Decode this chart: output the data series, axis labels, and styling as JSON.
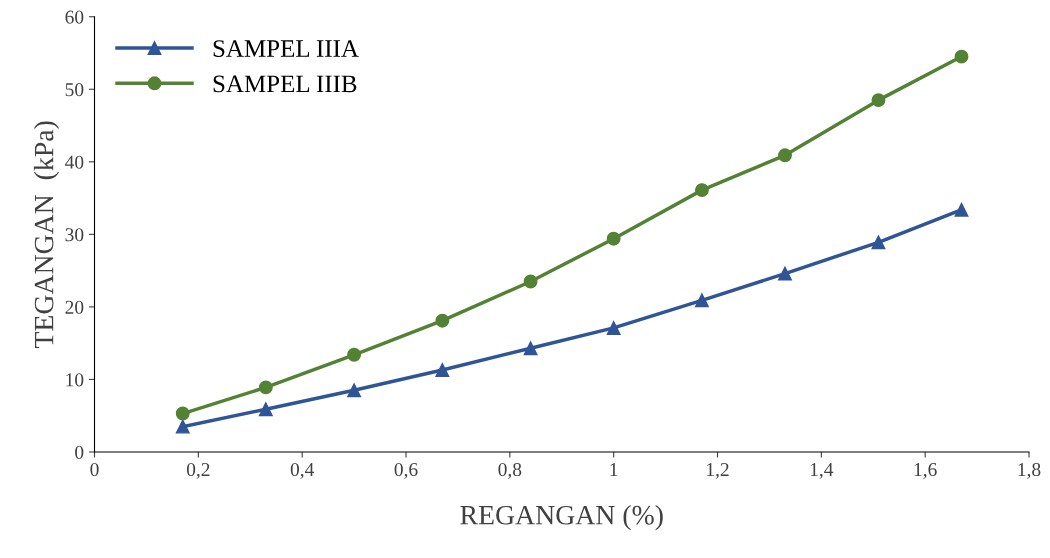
{
  "chart_data": {
    "type": "line",
    "xlabel": "REGANGAN (%)",
    "ylabel": "TEGANGAN  (kPa)",
    "x": [
      0.17,
      0.33,
      0.5,
      0.67,
      0.84,
      1.0,
      1.17,
      1.33,
      1.51,
      1.67
    ],
    "series": [
      {
        "name": "SAMPEL IIIA",
        "color": "#2f5597",
        "marker": "triangle",
        "values": [
          3.5,
          5.9,
          8.5,
          11.3,
          14.3,
          17.1,
          20.9,
          24.6,
          28.9,
          33.4
        ]
      },
      {
        "name": "SAMPEL IIIB",
        "color": "#548235",
        "marker": "circle",
        "values": [
          5.3,
          8.9,
          13.4,
          18.1,
          23.5,
          29.4,
          36.1,
          40.9,
          48.5,
          54.5
        ]
      }
    ],
    "xlim": [
      0,
      1.8
    ],
    "xticks": [
      0,
      {
        "value": 0.2,
        "label": "0,2"
      },
      {
        "value": 0.4,
        "label": "0,4"
      },
      {
        "value": 0.6,
        "label": "0,6"
      },
      {
        "value": 0.8,
        "label": "0,8"
      },
      1,
      {
        "value": 1.2,
        "label": "1,2"
      },
      {
        "value": 1.4,
        "label": "1,4"
      },
      {
        "value": 1.6,
        "label": "1,6"
      },
      {
        "value": 1.8,
        "label": "1,8"
      }
    ],
    "ylim": [
      0,
      60
    ],
    "yticks": [
      0,
      10,
      20,
      30,
      40,
      50,
      60
    ],
    "grid": false,
    "legend": "top left",
    "line_style": "solid"
  }
}
